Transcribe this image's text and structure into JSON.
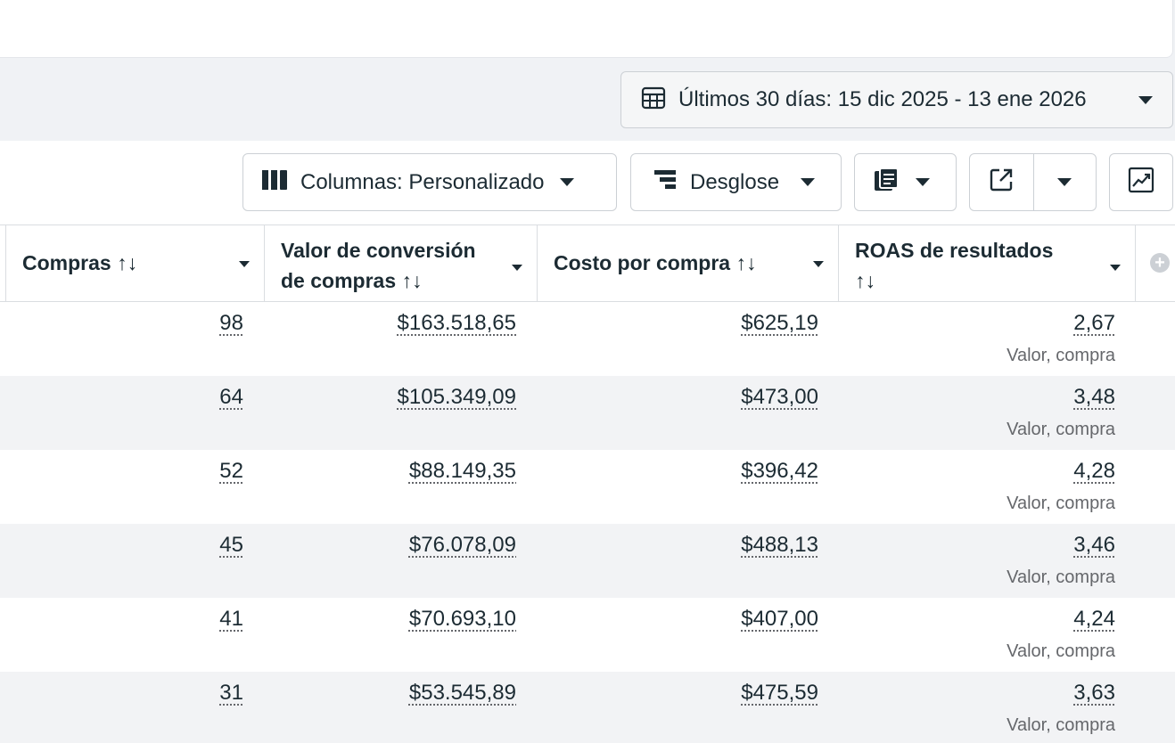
{
  "date_range": {
    "label": "Últimos 30 días: 15 dic 2025 - 13 ene 2026",
    "icon": "calendar-grid-icon"
  },
  "toolbar": {
    "columns_label": "Columnas: Personalizado",
    "breakdown_label": "Desglose",
    "reports_icon": "reports-icon",
    "export_icon": "export-icon",
    "chart_icon": "chart-trend-icon"
  },
  "table": {
    "headers": {
      "compras": "Compras ↑↓",
      "valor_l1": "Valor de conversión",
      "valor_l2": "de compras ↑↓",
      "costo": "Costo por compra ↑↓",
      "roas_l1": "ROAS de resultados",
      "roas_l2": "↑↓"
    },
    "rows": [
      {
        "compras": "98",
        "valor": "$163.518,65",
        "costo": "$625,19",
        "roas": "2,67",
        "roas_sub": "Valor, compra"
      },
      {
        "compras": "64",
        "valor": "$105.349,09",
        "costo": "$473,00",
        "roas": "3,48",
        "roas_sub": "Valor, compra"
      },
      {
        "compras": "52",
        "valor": "$88.149,35",
        "costo": "$396,42",
        "roas": "4,28",
        "roas_sub": "Valor, compra"
      },
      {
        "compras": "45",
        "valor": "$76.078,09",
        "costo": "$488,13",
        "roas": "3,46",
        "roas_sub": "Valor, compra"
      },
      {
        "compras": "41",
        "valor": "$70.693,10",
        "costo": "$407,00",
        "roas": "4,24",
        "roas_sub": "Valor, compra"
      },
      {
        "compras": "31",
        "valor": "$53.545,89",
        "costo": "$475,59",
        "roas": "3,63",
        "roas_sub": "Valor, compra"
      }
    ]
  }
}
